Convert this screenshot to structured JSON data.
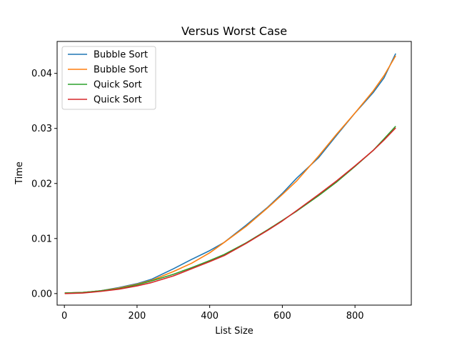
{
  "chart_data": {
    "type": "line",
    "title": "Versus Worst Case",
    "xlabel": "List Size",
    "ylabel": "Time",
    "xlim": [
      -20,
      955
    ],
    "ylim": [
      -0.0021,
      0.0458
    ],
    "xticks": [
      0,
      200,
      400,
      600,
      800
    ],
    "xtick_labels": [
      "0",
      "200",
      "400",
      "600",
      "800"
    ],
    "yticks": [
      0.0,
      0.01,
      0.02,
      0.03,
      0.04
    ],
    "ytick_labels": [
      "0.00",
      "0.01",
      "0.02",
      "0.03",
      "0.04"
    ],
    "grid": false,
    "legend_position": "upper-left",
    "series": [
      {
        "name": "Bubble Sort",
        "color": "#1f77b4",
        "x": [
          1,
          50,
          100,
          150,
          200,
          240,
          300,
          350,
          400,
          440,
          500,
          560,
          600,
          640,
          700,
          750,
          800,
          850,
          880,
          912
        ],
        "y": [
          0.0001,
          0.0002,
          0.0005,
          0.0011,
          0.0018,
          0.0026,
          0.0045,
          0.0062,
          0.0078,
          0.0093,
          0.0124,
          0.0157,
          0.0182,
          0.021,
          0.0247,
          0.0288,
          0.0328,
          0.0365,
          0.0392,
          0.0436
        ]
      },
      {
        "name": "Bubble Sort",
        "color": "#ff7f0e",
        "x": [
          1,
          50,
          100,
          150,
          200,
          240,
          300,
          350,
          400,
          440,
          500,
          560,
          600,
          640,
          700,
          750,
          800,
          850,
          880,
          912
        ],
        "y": [
          0.0001,
          0.0002,
          0.0005,
          0.001,
          0.0017,
          0.0024,
          0.004,
          0.0055,
          0.0074,
          0.0093,
          0.0122,
          0.0156,
          0.018,
          0.0205,
          0.025,
          0.029,
          0.0328,
          0.0368,
          0.0396,
          0.0432
        ]
      },
      {
        "name": "Quick Sort",
        "color": "#2ca02c",
        "x": [
          1,
          50,
          100,
          150,
          200,
          240,
          300,
          350,
          400,
          440,
          500,
          560,
          600,
          640,
          700,
          750,
          800,
          850,
          880,
          912
        ],
        "y": [
          0.0001,
          0.0002,
          0.0005,
          0.0009,
          0.0016,
          0.0023,
          0.0035,
          0.0047,
          0.006,
          0.0071,
          0.0092,
          0.0116,
          0.0133,
          0.015,
          0.0178,
          0.0203,
          0.0231,
          0.026,
          0.0281,
          0.0304
        ]
      },
      {
        "name": "Quick Sort",
        "color": "#d62728",
        "x": [
          1,
          50,
          100,
          150,
          200,
          240,
          300,
          350,
          400,
          440,
          500,
          560,
          600,
          640,
          700,
          750,
          800,
          850,
          880,
          912
        ],
        "y": [
          0.0,
          0.0001,
          0.0004,
          0.0008,
          0.0014,
          0.002,
          0.0032,
          0.0045,
          0.0058,
          0.0069,
          0.0091,
          0.0115,
          0.0132,
          0.0151,
          0.018,
          0.0205,
          0.0232,
          0.026,
          0.0279,
          0.0301
        ]
      }
    ]
  }
}
